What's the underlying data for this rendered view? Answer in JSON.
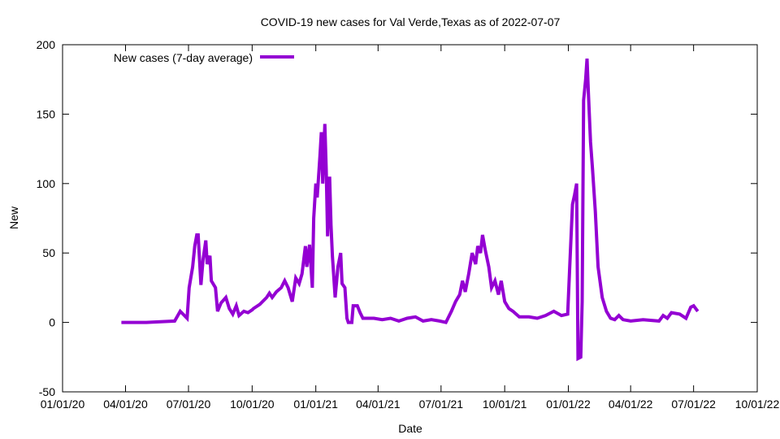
{
  "chart_data": {
    "type": "line",
    "title": "COVID-19 new cases for Val Verde,Texas as of 2022-07-07",
    "xlabel": "Date",
    "ylabel": "New",
    "xlim": [
      "2020-01-01",
      "2022-10-01"
    ],
    "ylim": [
      -50,
      200
    ],
    "yticks": [
      -50,
      0,
      50,
      100,
      150,
      200
    ],
    "xticks": [
      {
        "date": "2020-01-01",
        "label": "01/01/20"
      },
      {
        "date": "2020-04-01",
        "label": "04/01/20"
      },
      {
        "date": "2020-07-01",
        "label": "07/01/20"
      },
      {
        "date": "2020-10-01",
        "label": "10/01/20"
      },
      {
        "date": "2021-01-01",
        "label": "01/01/21"
      },
      {
        "date": "2021-04-01",
        "label": "04/01/21"
      },
      {
        "date": "2021-07-01",
        "label": "07/01/21"
      },
      {
        "date": "2021-10-01",
        "label": "10/01/21"
      },
      {
        "date": "2022-01-01",
        "label": "01/01/22"
      },
      {
        "date": "2022-04-01",
        "label": "04/01/22"
      },
      {
        "date": "2022-07-01",
        "label": "07/01/22"
      },
      {
        "date": "2022-10-01",
        "label": "10/01/22"
      }
    ],
    "grid": false,
    "legend_position": "top-left",
    "series": [
      {
        "name": "New cases (7-day average)",
        "color": "#9400d3",
        "points": [
          [
            "2020-03-26",
            0
          ],
          [
            "2020-05-01",
            0
          ],
          [
            "2020-06-11",
            1
          ],
          [
            "2020-06-19",
            8
          ],
          [
            "2020-06-29",
            3
          ],
          [
            "2020-07-02",
            25
          ],
          [
            "2020-07-07",
            40
          ],
          [
            "2020-07-10",
            55
          ],
          [
            "2020-07-13",
            63
          ],
          [
            "2020-07-15",
            63
          ],
          [
            "2020-07-19",
            27
          ],
          [
            "2020-07-22",
            45
          ],
          [
            "2020-07-26",
            59
          ],
          [
            "2020-07-28",
            42
          ],
          [
            "2020-08-01",
            48
          ],
          [
            "2020-08-03",
            30
          ],
          [
            "2020-08-09",
            25
          ],
          [
            "2020-08-12",
            8
          ],
          [
            "2020-08-17",
            14
          ],
          [
            "2020-08-24",
            18
          ],
          [
            "2020-08-29",
            10
          ],
          [
            "2020-09-03",
            6
          ],
          [
            "2020-09-08",
            12
          ],
          [
            "2020-09-12",
            5
          ],
          [
            "2020-09-19",
            8
          ],
          [
            "2020-09-25",
            7
          ],
          [
            "2020-10-01",
            9
          ],
          [
            "2020-10-03",
            10
          ],
          [
            "2020-10-12",
            13
          ],
          [
            "2020-10-22",
            18
          ],
          [
            "2020-10-26",
            21
          ],
          [
            "2020-10-30",
            18
          ],
          [
            "2020-11-05",
            22
          ],
          [
            "2020-11-12",
            25
          ],
          [
            "2020-11-17",
            30
          ],
          [
            "2020-11-22",
            25
          ],
          [
            "2020-11-28",
            15
          ],
          [
            "2020-12-03",
            32
          ],
          [
            "2020-12-08",
            28
          ],
          [
            "2020-12-12",
            35
          ],
          [
            "2020-12-17",
            55
          ],
          [
            "2020-12-19",
            40
          ],
          [
            "2020-12-23",
            56
          ],
          [
            "2020-12-27",
            25
          ],
          [
            "2020-12-29",
            75
          ],
          [
            "2021-01-01",
            100
          ],
          [
            "2021-01-03",
            90
          ],
          [
            "2021-01-07",
            120
          ],
          [
            "2021-01-09",
            137
          ],
          [
            "2021-01-11",
            100
          ],
          [
            "2021-01-14",
            143
          ],
          [
            "2021-01-16",
            110
          ],
          [
            "2021-01-18",
            62
          ],
          [
            "2021-01-21",
            105
          ],
          [
            "2021-01-23",
            70
          ],
          [
            "2021-01-25",
            48
          ],
          [
            "2021-01-29",
            18
          ],
          [
            "2021-02-02",
            40
          ],
          [
            "2021-02-06",
            50
          ],
          [
            "2021-02-08",
            28
          ],
          [
            "2021-02-12",
            25
          ],
          [
            "2021-02-15",
            3
          ],
          [
            "2021-02-17",
            0
          ],
          [
            "2021-02-22",
            0
          ],
          [
            "2021-02-24",
            12
          ],
          [
            "2021-03-02",
            12
          ],
          [
            "2021-03-06",
            7
          ],
          [
            "2021-03-10",
            3
          ],
          [
            "2021-03-26",
            3
          ],
          [
            "2021-04-07",
            2
          ],
          [
            "2021-04-19",
            3
          ],
          [
            "2021-05-01",
            1
          ],
          [
            "2021-05-13",
            3
          ],
          [
            "2021-05-25",
            4
          ],
          [
            "2021-06-05",
            1
          ],
          [
            "2021-06-17",
            2
          ],
          [
            "2021-06-29",
            1
          ],
          [
            "2021-07-08",
            0
          ],
          [
            "2021-07-16",
            8
          ],
          [
            "2021-07-22",
            15
          ],
          [
            "2021-07-28",
            20
          ],
          [
            "2021-08-01",
            30
          ],
          [
            "2021-08-05",
            22
          ],
          [
            "2021-08-10",
            35
          ],
          [
            "2021-08-15",
            50
          ],
          [
            "2021-08-20",
            42
          ],
          [
            "2021-08-23",
            55
          ],
          [
            "2021-08-27",
            50
          ],
          [
            "2021-08-30",
            63
          ],
          [
            "2021-09-03",
            52
          ],
          [
            "2021-09-08",
            40
          ],
          [
            "2021-09-12",
            25
          ],
          [
            "2021-09-17",
            30
          ],
          [
            "2021-09-22",
            20
          ],
          [
            "2021-09-26",
            30
          ],
          [
            "2021-10-01",
            15
          ],
          [
            "2021-10-07",
            10
          ],
          [
            "2021-10-13",
            8
          ],
          [
            "2021-10-22",
            4
          ],
          [
            "2021-11-05",
            4
          ],
          [
            "2021-11-17",
            3
          ],
          [
            "2021-11-29",
            5
          ],
          [
            "2021-12-11",
            8
          ],
          [
            "2021-12-22",
            5
          ],
          [
            "2021-12-31",
            6
          ],
          [
            "2022-01-03",
            40
          ],
          [
            "2022-01-07",
            85
          ],
          [
            "2022-01-10",
            92
          ],
          [
            "2022-01-13",
            100
          ],
          [
            "2022-01-15",
            -26
          ],
          [
            "2022-01-19",
            -25
          ],
          [
            "2022-01-21",
            15
          ],
          [
            "2022-01-23",
            160
          ],
          [
            "2022-01-26",
            175
          ],
          [
            "2022-01-28",
            190
          ],
          [
            "2022-01-30",
            165
          ],
          [
            "2022-02-02",
            130
          ],
          [
            "2022-02-05",
            110
          ],
          [
            "2022-02-09",
            80
          ],
          [
            "2022-02-13",
            40
          ],
          [
            "2022-02-19",
            18
          ],
          [
            "2022-02-25",
            8
          ],
          [
            "2022-03-03",
            3
          ],
          [
            "2022-03-09",
            2
          ],
          [
            "2022-03-15",
            5
          ],
          [
            "2022-03-21",
            2
          ],
          [
            "2022-04-01",
            1
          ],
          [
            "2022-04-19",
            2
          ],
          [
            "2022-05-12",
            1
          ],
          [
            "2022-05-18",
            5
          ],
          [
            "2022-05-24",
            3
          ],
          [
            "2022-05-30",
            7
          ],
          [
            "2022-06-11",
            6
          ],
          [
            "2022-06-20",
            3
          ],
          [
            "2022-06-27",
            11
          ],
          [
            "2022-07-01",
            12
          ],
          [
            "2022-07-07",
            8
          ]
        ]
      }
    ]
  }
}
